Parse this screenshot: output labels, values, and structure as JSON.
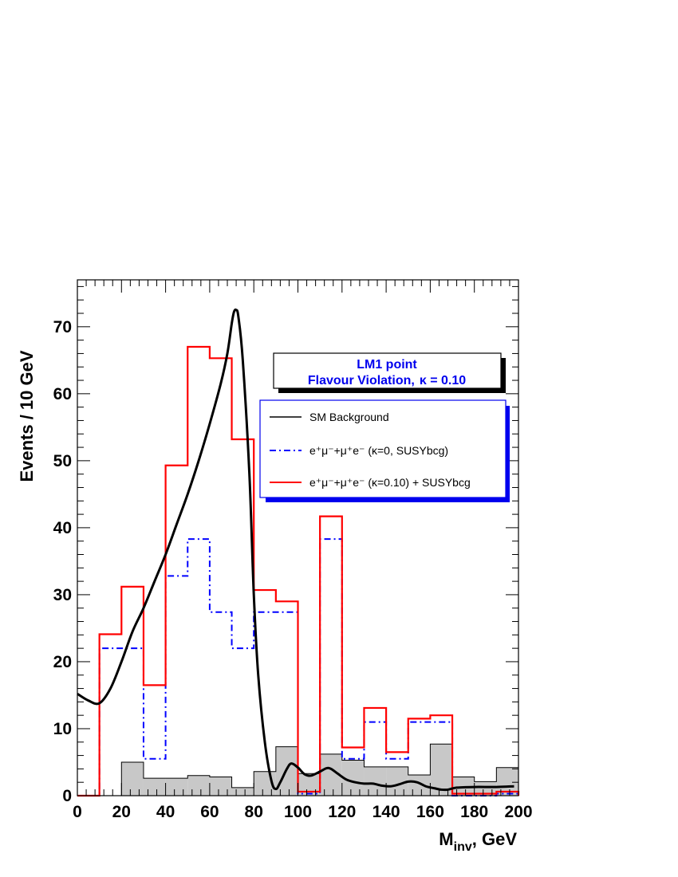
{
  "chart_data": {
    "type": "histogram",
    "xlabel": "M",
    "xlabel_sub": "inv",
    "xlabel_unit": ", GeV",
    "ylabel": "Events / 10 GeV",
    "xlim": [
      0,
      200
    ],
    "ylim": [
      0,
      77
    ],
    "x_ticks": [
      "0",
      "20",
      "40",
      "60",
      "80",
      "100",
      "120",
      "140",
      "160",
      "180",
      "200"
    ],
    "y_ticks": [
      "0",
      "10",
      "20",
      "30",
      "40",
      "50",
      "60",
      "70"
    ],
    "grid": false,
    "bin_edges": [
      0,
      10,
      20,
      30,
      40,
      50,
      60,
      70,
      80,
      90,
      100,
      110,
      120,
      130,
      140,
      150,
      160,
      170,
      180,
      190,
      200
    ],
    "info_box": {
      "line1": "LM1 point",
      "line2": "Flavour Violation,",
      "kappa": "κ = 0.10"
    },
    "legend_entries": {
      "sm_background": "SM Background",
      "susy_k0": "e⁺μ⁻+μ⁺e⁻ (κ=0, SUSYbcg)",
      "susy_k010": "e⁺μ⁻+μ⁺e⁻ (κ=0.10) + SUSYbcg"
    },
    "series": [
      {
        "key": "sm_filled",
        "style": "filled-histogram",
        "color": "#c8c8c8",
        "values": [
          0,
          0,
          5.0,
          2.6,
          2.6,
          3.0,
          2.8,
          1.2,
          3.6,
          7.3,
          3.3,
          6.2,
          5.3,
          4.3,
          4.3,
          3.1,
          7.7,
          2.8,
          2.1,
          4.2
        ]
      },
      {
        "key": "susy_k0",
        "style": "dashdot-histogram",
        "color": "#0000ff",
        "values": [
          0,
          22.0,
          22.0,
          5.5,
          32.8,
          38.3,
          27.4,
          22.0,
          27.4,
          27.4,
          0.3,
          38.3,
          5.5,
          11.0,
          5.5,
          11.0,
          11.0,
          0,
          0,
          0.3
        ]
      },
      {
        "key": "susy_k010",
        "style": "solid-histogram",
        "color": "#ff0000",
        "values": [
          0,
          24.1,
          31.2,
          16.5,
          49.3,
          67.0,
          65.3,
          53.2,
          30.7,
          29.0,
          0.6,
          41.7,
          7.2,
          13.1,
          6.5,
          11.5,
          12.0,
          0.3,
          0.3,
          0.6
        ]
      },
      {
        "key": "sm_background",
        "style": "smooth-curve",
        "color": "#000000",
        "points": [
          [
            0,
            15.2
          ],
          [
            5,
            14.2
          ],
          [
            10,
            13.8
          ],
          [
            15,
            16.0
          ],
          [
            20,
            20.0
          ],
          [
            25,
            24.5
          ],
          [
            30,
            28.0
          ],
          [
            35,
            32.0
          ],
          [
            40,
            36.0
          ],
          [
            45,
            40.5
          ],
          [
            50,
            45.0
          ],
          [
            55,
            50.0
          ],
          [
            60,
            55.5
          ],
          [
            65,
            61.5
          ],
          [
            68,
            66.0
          ],
          [
            70,
            70.5
          ],
          [
            71,
            72.2
          ],
          [
            72,
            72.5
          ],
          [
            73,
            71.5
          ],
          [
            75,
            65.0
          ],
          [
            78,
            48.0
          ],
          [
            80,
            30.0
          ],
          [
            82,
            18.0
          ],
          [
            85,
            8.0
          ],
          [
            88,
            2.2
          ],
          [
            90,
            1.0
          ],
          [
            92,
            2.0
          ],
          [
            95,
            4.0
          ],
          [
            97,
            4.8
          ],
          [
            100,
            4.2
          ],
          [
            103,
            3.2
          ],
          [
            106,
            3.0
          ],
          [
            110,
            3.6
          ],
          [
            113,
            4.1
          ],
          [
            115,
            4.0
          ],
          [
            118,
            3.3
          ],
          [
            122,
            2.4
          ],
          [
            126,
            2.0
          ],
          [
            130,
            1.8
          ],
          [
            134,
            1.8
          ],
          [
            138,
            1.5
          ],
          [
            142,
            1.4
          ],
          [
            146,
            1.7
          ],
          [
            150,
            2.1
          ],
          [
            154,
            2.0
          ],
          [
            158,
            1.4
          ],
          [
            162,
            1.1
          ],
          [
            165,
            0.9
          ],
          [
            168,
            0.9
          ],
          [
            172,
            1.2
          ],
          [
            180,
            1.3
          ],
          [
            190,
            1.3
          ],
          [
            198,
            1.4
          ]
        ]
      }
    ]
  }
}
